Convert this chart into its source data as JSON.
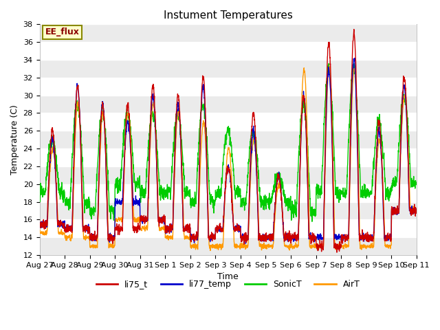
{
  "title": "Instument Temperatures",
  "xlabel": "Time",
  "ylabel": "Temperature (C)",
  "ylim": [
    12,
    38
  ],
  "yticks": [
    12,
    14,
    16,
    18,
    20,
    22,
    24,
    26,
    28,
    30,
    32,
    34,
    36,
    38
  ],
  "xtick_labels": [
    "Aug 27",
    "Aug 28",
    "Aug 29",
    "Aug 30",
    "Aug 31",
    "Sep 1",
    "Sep 2",
    "Sep 3",
    "Sep 4",
    "Sep 5",
    "Sep 6",
    "Sep 7",
    "Sep 8",
    "Sep 9",
    "Sep 10",
    "Sep 11"
  ],
  "legend_label": "EE_flux",
  "series_labels": [
    "li75_t",
    "li77_temp",
    "SonicT",
    "AirT"
  ],
  "series_colors": [
    "#cc0000",
    "#0000cc",
    "#00cc00",
    "#ff9900"
  ],
  "fig_bg_color": "#ffffff",
  "plot_bg_color": "#ffffff",
  "grid_color": "#dddddd",
  "figsize": [
    6.4,
    4.8
  ],
  "dpi": 100,
  "n_days": 15,
  "pts_per_day": 144
}
